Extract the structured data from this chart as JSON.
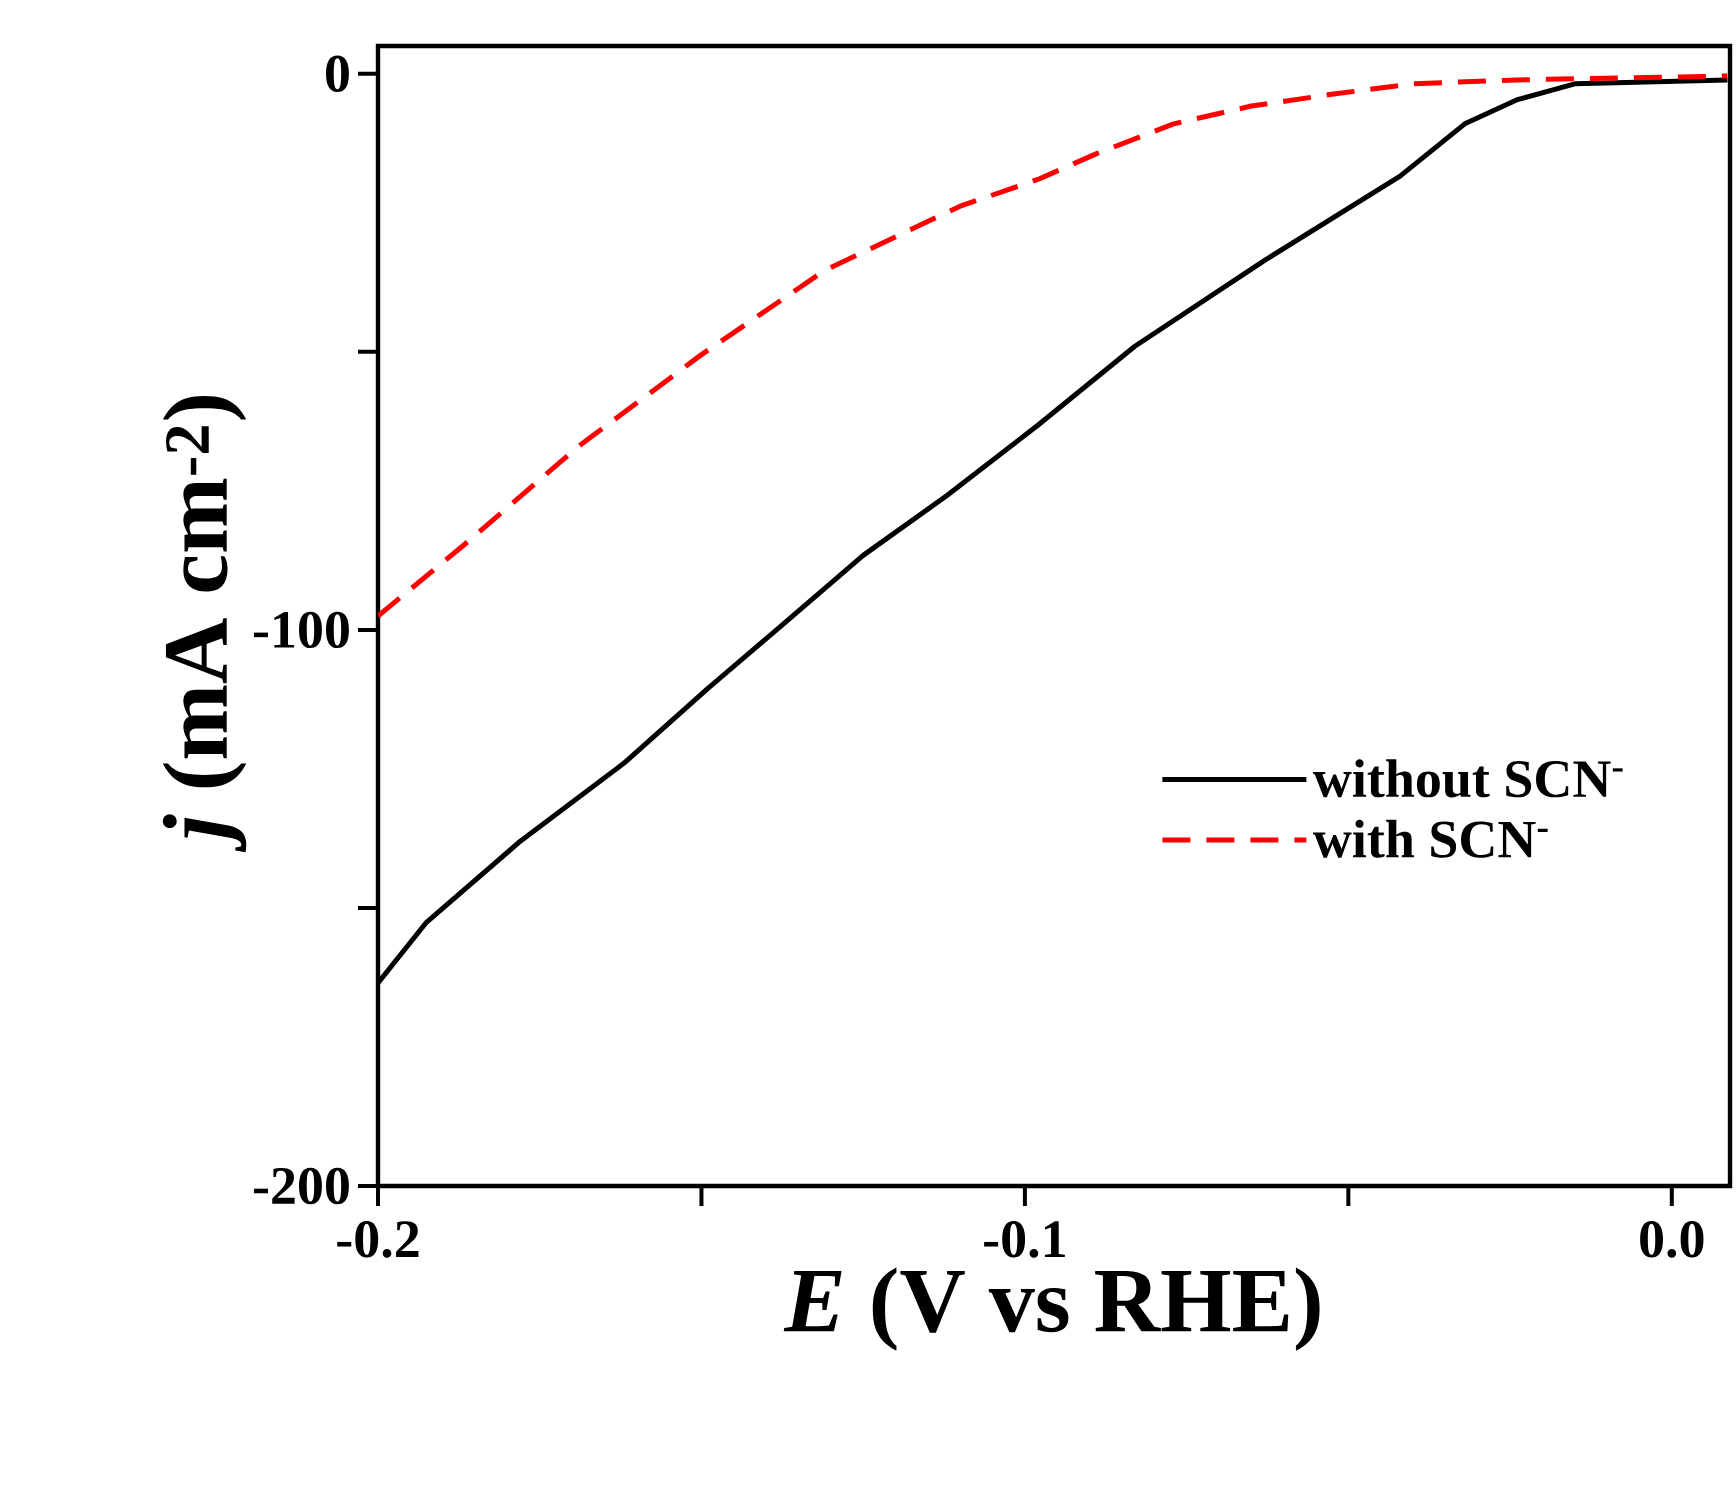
{
  "chart_data": {
    "type": "line",
    "xlabel": "*E* (V vs RHE)",
    "ylabel": "*j* (mA cm$^{-2}$)",
    "xlim": [
      -0.2,
      0.009
    ],
    "ylim": [
      -200,
      5
    ],
    "xticks": [
      -0.2,
      {
        "value": -0.15,
        "label": null
      },
      -0.1,
      {
        "value": -0.05,
        "label": null
      },
      {
        "value": 0,
        "label": "0.0"
      }
    ],
    "yticks": [
      -200,
      {
        "value": -150,
        "label": null
      },
      -100,
      {
        "value": -50,
        "label": null
      },
      0
    ],
    "legend": "right",
    "grid": false,
    "marker": "none",
    "series": [
      {
        "name": "without SCN$^{-}$",
        "color": "#000000",
        "line_style": "solid",
        "x": [
          -0.2,
          -0.1926,
          -0.178,
          -0.162,
          -0.149,
          -0.137,
          -0.125,
          -0.112,
          -0.098,
          -0.083,
          -0.063,
          -0.042,
          -0.032,
          -0.024,
          -0.015,
          0.0086
        ],
        "values": [
          -163.5,
          -152.7,
          -138,
          -124,
          -110.5,
          -98.6,
          -86.6,
          -75.8,
          -63.2,
          -49,
          -33.6,
          -18.4,
          -9,
          -4.7,
          -1.8,
          -1.1
        ]
      },
      {
        "name": "with SCN$^{-}$",
        "color": "#ff0000",
        "line_style": "dashed",
        "x": [
          -0.2,
          -0.187,
          -0.169,
          -0.15,
          -0.131,
          -0.11,
          -0.098,
          -0.089,
          -0.077,
          -0.065,
          -0.052,
          -0.04,
          -0.024,
          0.0086
        ],
        "values": [
          -97.5,
          -85,
          -67,
          -50.5,
          -35.4,
          -23.8,
          -19,
          -14.4,
          -9,
          -5.8,
          -3.6,
          -1.8,
          -1.1,
          -0.4
        ]
      }
    ]
  }
}
